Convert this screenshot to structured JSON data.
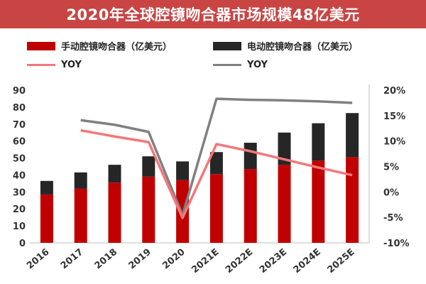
{
  "header": {
    "title": "2020年全球腔镜吻合器市场规模48亿美元"
  },
  "colors": {
    "banner": "#c94543",
    "manual": "#c00000",
    "electric": "#262626",
    "manual_yoy": "#f4777a",
    "electric_yoy": "#808080"
  },
  "chart_data": {
    "type": "bar",
    "stacked": true,
    "title": "2020年全球腔镜吻合器市场规模48亿美元",
    "categories": [
      "2016",
      "2017",
      "2018",
      "2019",
      "2020",
      "2021E",
      "2022E",
      "2023E",
      "2024E",
      "2025E"
    ],
    "series": [
      {
        "name": "手动腔镜吻合器（亿美元）",
        "type": "bar",
        "axis": "left",
        "values": [
          28.5,
          32,
          35.5,
          39,
          37,
          40.5,
          43.5,
          46,
          48.5,
          50.5
        ]
      },
      {
        "name": "电动腔镜吻合器（亿美元）",
        "type": "bar",
        "axis": "left",
        "values": [
          8,
          9.5,
          10.5,
          12,
          11,
          13,
          15.5,
          19,
          22,
          26
        ]
      },
      {
        "name": "YOY",
        "type": "line",
        "axis": "right",
        "values": [
          null,
          12.1,
          10.9,
          9.8,
          -5.1,
          9.4,
          8,
          6.4,
          4.8,
          3.3
        ]
      },
      {
        "name": "YOY",
        "type": "line",
        "axis": "right",
        "values": [
          null,
          14.1,
          13.2,
          11.8,
          -4.6,
          18.3,
          18.1,
          18,
          17.8,
          17.5
        ]
      }
    ],
    "y_left": {
      "min": 0,
      "max": 90,
      "ticks": [
        "0",
        "10",
        "20",
        "30",
        "40",
        "50",
        "60",
        "70",
        "80",
        "90"
      ]
    },
    "y_right": {
      "min": -10,
      "max": 20,
      "ticks": [
        "-10%",
        "-5%",
        "0%",
        "5%",
        "10%",
        "15%",
        "20%"
      ]
    },
    "legend": {
      "manual": "手动腔镜吻合器（亿美元）",
      "electric": "电动腔镜吻合器（亿美元）",
      "manual_yoy": "YOY",
      "electric_yoy": "YOY"
    },
    "grid": false
  }
}
